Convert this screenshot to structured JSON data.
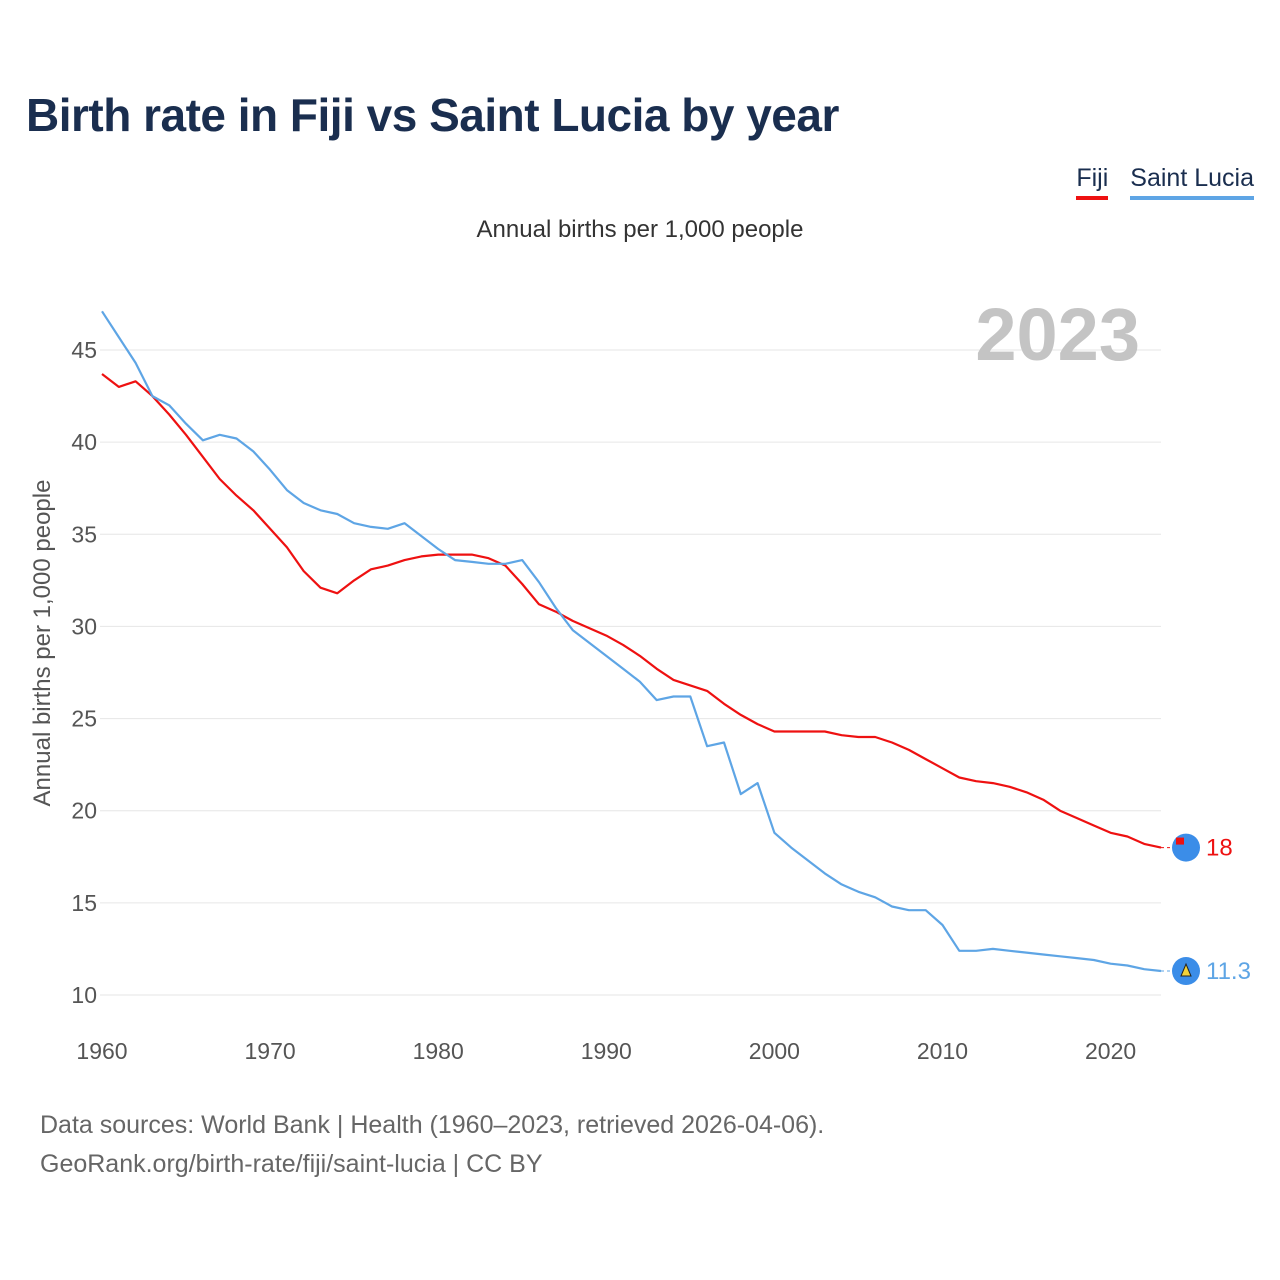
{
  "title": "Birth rate in Fiji vs Saint Lucia by year",
  "subtitle": "Annual births per 1,000 people",
  "year_watermark": "2023",
  "footer": {
    "line1": "Data sources: World Bank | Health (1960–2023, retrieved 2026-04-06).",
    "line2": "GeoRank.org/birth-rate/fiji/saint-lucia | CC BY"
  },
  "legend": {
    "fiji": "Fiji",
    "saint_lucia": "Saint Lucia"
  },
  "colors": {
    "fiji": "#ee1111",
    "saint_lucia": "#5ea5e5",
    "grid": "#e6e6e6",
    "axis_text": "#555555",
    "watermark": "#c4c4c4"
  },
  "chart_data": {
    "type": "line",
    "title": "Birth rate in Fiji vs Saint Lucia by year",
    "ylabel": "Annual births per 1,000 people",
    "xlabel": "",
    "xlim": [
      1960,
      2023
    ],
    "ylim": [
      9,
      48
    ],
    "x_ticks": [
      1960,
      1970,
      1980,
      1990,
      2000,
      2010,
      2020
    ],
    "y_ticks": [
      10,
      15,
      20,
      25,
      30,
      35,
      40,
      45
    ],
    "grid": true,
    "x": [
      1960,
      1961,
      1962,
      1963,
      1964,
      1965,
      1966,
      1967,
      1968,
      1969,
      1970,
      1971,
      1972,
      1973,
      1974,
      1975,
      1976,
      1977,
      1978,
      1979,
      1980,
      1981,
      1982,
      1983,
      1984,
      1985,
      1986,
      1987,
      1988,
      1989,
      1990,
      1991,
      1992,
      1993,
      1994,
      1995,
      1996,
      1997,
      1998,
      1999,
      2000,
      2001,
      2002,
      2003,
      2004,
      2005,
      2006,
      2007,
      2008,
      2009,
      2010,
      2011,
      2012,
      2013,
      2014,
      2015,
      2016,
      2017,
      2018,
      2019,
      2020,
      2021,
      2022,
      2023
    ],
    "series": [
      {
        "name": "Fiji",
        "end_label": "18",
        "values": [
          43.7,
          43.0,
          43.3,
          42.5,
          41.5,
          40.4,
          39.2,
          38.0,
          37.1,
          36.3,
          35.3,
          34.3,
          33.0,
          32.1,
          31.8,
          32.5,
          33.1,
          33.3,
          33.6,
          33.8,
          33.9,
          33.9,
          33.9,
          33.7,
          33.3,
          32.3,
          31.2,
          30.8,
          30.3,
          29.9,
          29.5,
          29.0,
          28.4,
          27.7,
          27.1,
          26.8,
          26.5,
          25.8,
          25.2,
          24.7,
          24.3,
          24.3,
          24.3,
          24.3,
          24.1,
          24.0,
          24.0,
          23.7,
          23.3,
          22.8,
          22.3,
          21.8,
          21.6,
          21.5,
          21.3,
          21.0,
          20.6,
          20.0,
          19.6,
          19.2,
          18.8,
          18.6,
          18.2,
          18.0
        ]
      },
      {
        "name": "Saint Lucia",
        "end_label": "11.3",
        "values": [
          47.1,
          45.7,
          44.3,
          42.5,
          42.0,
          41.0,
          40.1,
          40.4,
          40.2,
          39.5,
          38.5,
          37.4,
          36.7,
          36.3,
          36.1,
          35.6,
          35.4,
          35.3,
          35.6,
          34.9,
          34.2,
          33.6,
          33.5,
          33.4,
          33.4,
          33.6,
          32.4,
          31.0,
          29.8,
          29.1,
          28.4,
          27.7,
          27.0,
          26.0,
          26.2,
          26.2,
          23.5,
          23.7,
          20.9,
          21.5,
          18.8,
          18.0,
          17.3,
          16.6,
          16.0,
          15.6,
          15.3,
          14.8,
          14.6,
          14.6,
          13.8,
          12.4,
          12.4,
          12.5,
          12.4,
          12.3,
          12.2,
          12.1,
          12.0,
          11.9,
          11.7,
          11.6,
          11.4,
          11.3
        ]
      }
    ]
  }
}
